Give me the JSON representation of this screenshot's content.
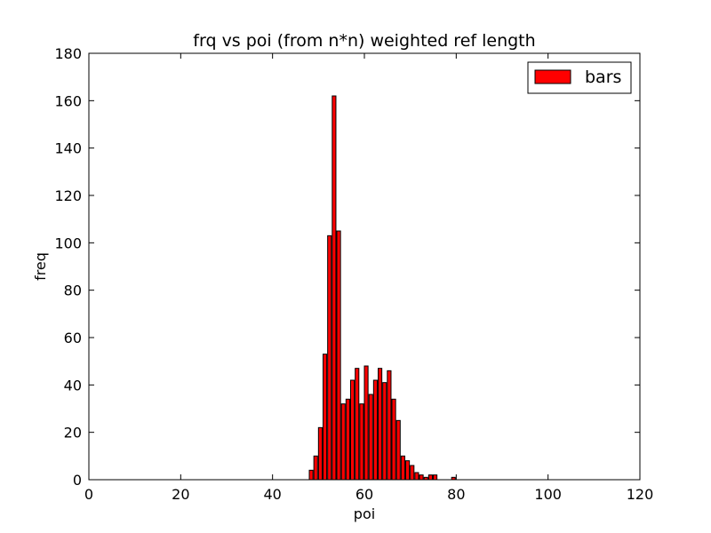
{
  "chart_data": {
    "type": "bar",
    "title": "frq vs poi (from n*n) weighted ref length",
    "xlabel": "poi",
    "ylabel": "freq",
    "xlim": [
      0,
      120
    ],
    "ylim": [
      0,
      180
    ],
    "xticks": [
      0,
      20,
      40,
      60,
      80,
      100,
      120
    ],
    "yticks": [
      0,
      20,
      40,
      60,
      80,
      100,
      120,
      140,
      160,
      180
    ],
    "grid": false,
    "legend": {
      "position": "top-right",
      "entries": [
        "bars"
      ]
    },
    "bar_color": "#ff0000",
    "bar_edge_color": "#000000",
    "bar_width": 0.8,
    "series": [
      {
        "name": "bars",
        "x": [
          48,
          49,
          50,
          51,
          52,
          53,
          54,
          55,
          56,
          57,
          58,
          59,
          60,
          61,
          62,
          63,
          64,
          65,
          66,
          67,
          68,
          69,
          70,
          71,
          72,
          73,
          74,
          75,
          79
        ],
        "values": [
          4,
          10,
          22,
          53,
          103,
          162,
          105,
          32,
          34,
          42,
          47,
          32,
          48,
          36,
          42,
          47,
          41,
          46,
          34,
          25,
          10,
          8,
          6,
          3,
          2,
          1,
          2,
          2,
          1
        ]
      }
    ]
  }
}
